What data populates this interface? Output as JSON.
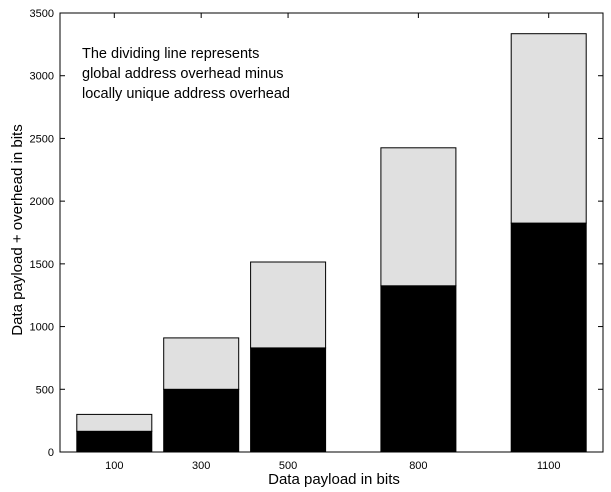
{
  "chart_data": {
    "type": "bar",
    "stacked": true,
    "categories": [
      "100",
      "300",
      "500",
      "800",
      "1100"
    ],
    "x_positions": [
      100,
      300,
      500,
      800,
      1100
    ],
    "series": [
      {
        "values": [
          165,
          500,
          830,
          1325,
          1825
        ],
        "color": "#000000"
      },
      {
        "values": [
          135,
          410,
          685,
          1100,
          1510
        ],
        "color": "#e0e0e0"
      }
    ],
    "totals": [
      300,
      910,
      1515,
      2425,
      3335
    ],
    "xlabel": "Data payload in bits",
    "ylabel": "Data payload + overhead in bits",
    "ylim": [
      0,
      3500
    ],
    "yticks": [
      0,
      500,
      1000,
      1500,
      2000,
      2500,
      3000,
      3500
    ],
    "grid": false,
    "annotation": [
      "The dividing line represents",
      "global address overhead minus",
      "locally unique address overhead"
    ]
  }
}
